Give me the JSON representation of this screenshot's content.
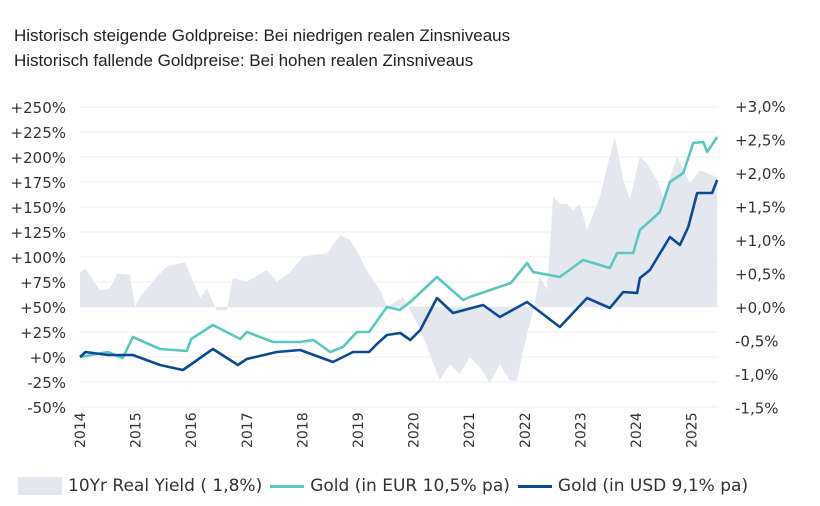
{
  "titles": [
    "Historisch steigende Goldpreise: Bei niedrigen realen Zinsniveaus",
    "Historisch fallende Goldpreise: Bei hohen realen Zinsniveaus"
  ],
  "chart_data": {
    "type": "line",
    "title": "Historisch steigende Goldpreise: Bei niedrigen realen Zinsniveaus / Historisch fallende Goldpreise: Bei hohen realen Zinsniveaus",
    "x_ticks": [
      "2014",
      "2015",
      "2016",
      "2017",
      "2018",
      "2019",
      "2020",
      "2021",
      "2022",
      "2023",
      "2024",
      "2025"
    ],
    "y_left": {
      "range": [
        -50,
        250
      ],
      "ticks": [
        "+250%",
        "+225%",
        "+200%",
        "+175%",
        "+150%",
        "+125%",
        "+100%",
        "+75%",
        "+50%",
        "+25%",
        "+0%",
        "-25%",
        "-50%"
      ]
    },
    "y_right": {
      "range": [
        -1.5,
        3.0
      ],
      "ticks": [
        "+3,0%",
        "+2,5%",
        "+2,0%",
        "+1,5%",
        "+1,0%",
        "+0,5%",
        "+0,0%",
        "-0,5%",
        "-1,0%",
        "-1,5%"
      ]
    },
    "grid": true,
    "legend_position": "bottom",
    "series": [
      {
        "name": "10Yr Real Yield ( 1,8%)",
        "type": "area",
        "axis": "right",
        "color": "#e4e7ee",
        "x": [
          2014.0,
          2014.1,
          2014.36,
          2014.54,
          2014.67,
          2014.9,
          2014.99,
          2015.08,
          2015.38,
          2015.56,
          2015.89,
          2016.16,
          2016.28,
          2016.46,
          2016.64,
          2016.75,
          2017.0,
          2017.36,
          2017.54,
          2017.78,
          2018.01,
          2018.2,
          2018.44,
          2018.68,
          2018.86,
          2019.04,
          2019.15,
          2019.4,
          2019.52,
          2019.81,
          2019.94,
          2020.12,
          2020.47,
          2020.65,
          2020.83,
          2021.01,
          2021.19,
          2021.37,
          2021.55,
          2021.73,
          2021.86,
          2021.97,
          2022.15,
          2022.27,
          2022.4,
          2022.51,
          2022.63,
          2022.76,
          2022.87,
          2022.99,
          2023.12,
          2023.35,
          2023.48,
          2023.62,
          2023.77,
          2023.89,
          2024.07,
          2024.2,
          2024.38,
          2024.49,
          2024.74,
          2024.97,
          2025.15,
          2025.46
        ],
        "values": [
          0.52,
          0.57,
          0.25,
          0.28,
          0.5,
          0.48,
          0.0,
          0.15,
          0.45,
          0.6,
          0.67,
          0.13,
          0.28,
          -0.05,
          -0.05,
          0.43,
          0.38,
          0.55,
          0.38,
          0.52,
          0.75,
          0.78,
          0.8,
          1.07,
          1.0,
          0.75,
          0.55,
          0.25,
          0.0,
          0.15,
          -0.05,
          -0.34,
          -1.09,
          -0.85,
          -1.0,
          -0.75,
          -0.9,
          -1.13,
          -0.85,
          -1.1,
          -1.1,
          -0.64,
          -0.05,
          0.45,
          0.25,
          1.64,
          1.54,
          1.54,
          1.44,
          1.54,
          1.15,
          1.64,
          2.09,
          2.54,
          1.9,
          1.6,
          2.24,
          2.14,
          1.89,
          1.64,
          2.24,
          1.85,
          2.04,
          1.94
        ]
      },
      {
        "name": "Gold (in EUR 10,5% pa)",
        "axis": "left",
        "color": "#5bc8c0",
        "x": [
          2014.0,
          2014.5,
          2014.77,
          2014.95,
          2015.44,
          2015.92,
          2016.0,
          2016.39,
          2016.88,
          2017.0,
          2017.47,
          2017.96,
          2018.2,
          2018.5,
          2018.73,
          2018.98,
          2019.2,
          2019.52,
          2019.75,
          2019.94,
          2020.42,
          2020.89,
          2021.01,
          2021.75,
          2022.04,
          2022.15,
          2022.63,
          2023.05,
          2023.35,
          2023.53,
          2023.66,
          2023.95,
          2024.07,
          2024.43,
          2024.61,
          2024.85,
          2025.03,
          2025.21,
          2025.28,
          2025.46
        ],
        "values": [
          0,
          5,
          -1,
          20,
          8,
          6,
          18,
          32,
          18,
          25,
          15,
          15,
          17,
          5,
          10,
          25,
          25,
          50,
          47,
          55,
          80,
          57,
          60,
          74,
          94,
          85,
          80,
          97,
          92,
          89,
          104,
          104,
          127,
          145,
          175,
          184,
          214,
          215,
          205,
          220
        ]
      },
      {
        "name": "Gold (in USD 9,1% pa)",
        "axis": "left",
        "color": "#0d4a94",
        "x": [
          2014.0,
          2014.1,
          2014.5,
          2014.95,
          2015.44,
          2015.85,
          2015.98,
          2016.39,
          2016.84,
          2017.0,
          2017.54,
          2017.96,
          2018.55,
          2018.91,
          2019.2,
          2019.34,
          2019.52,
          2019.76,
          2019.94,
          2020.12,
          2020.42,
          2020.71,
          2021.25,
          2021.55,
          2022.04,
          2022.63,
          2023.12,
          2023.53,
          2023.77,
          2024.02,
          2024.07,
          2024.25,
          2024.61,
          2024.79,
          2024.94,
          2025.1,
          2025.37,
          2025.46
        ],
        "values": [
          0,
          5,
          2,
          2,
          -8,
          -13,
          -8,
          8,
          -8,
          -2,
          5,
          7,
          -5,
          5,
          5,
          13,
          22,
          24,
          17,
          27,
          59,
          44,
          52,
          40,
          55,
          30,
          59,
          49,
          65,
          64,
          79,
          87,
          120,
          112,
          130,
          164,
          164,
          177
        ]
      }
    ]
  }
}
